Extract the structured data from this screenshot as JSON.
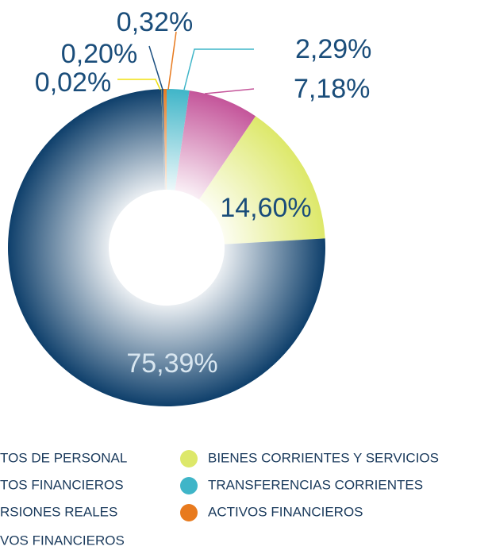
{
  "chart_data": {
    "type": "donut",
    "categories": [
      "TRANSFERENCIAS CORRIENTES",
      "RSIONES REALES",
      "BIENES CORRIENTES Y SERVICIOS",
      "TOS DE PERSONAL",
      "VOS FINANCIEROS",
      "TOS FINANCIEROS",
      "ACTIVOS FINANCIEROS"
    ],
    "values": [
      2.29,
      7.18,
      14.6,
      75.39,
      0.02,
      0.2,
      0.32
    ],
    "value_labels": [
      "2,29%",
      "7,18%",
      "14,60%",
      "75,39%",
      "0,02%",
      "0,20%",
      "0,32%"
    ],
    "colors": [
      "#3fb5c8",
      "#c4559a",
      "#dde86a",
      "#0e3f6b",
      "#f0e010",
      "#1b4f80",
      "#e87a1e"
    ]
  }
}
